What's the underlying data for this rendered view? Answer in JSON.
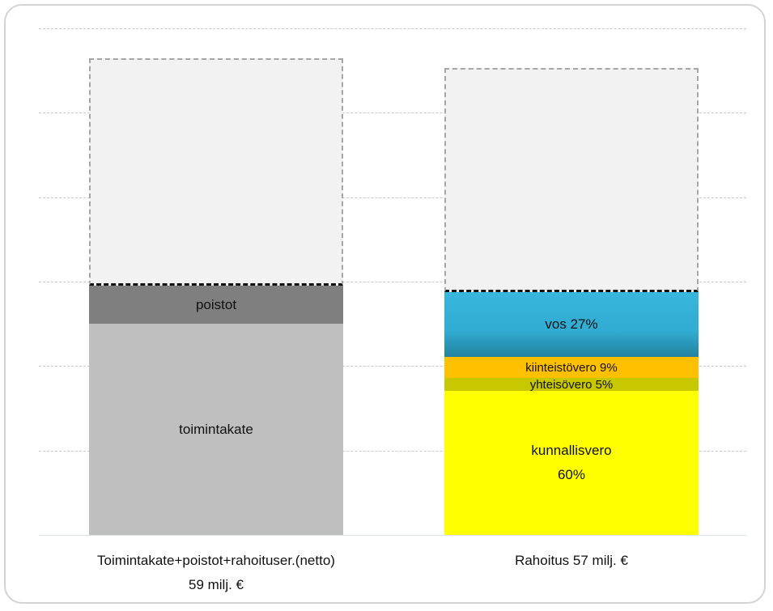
{
  "chart_data": {
    "type": "stacked_bar",
    "categories": [
      "Toimintakate+poistot+rahoituser.(netto)\n59 milj. €",
      "Rahoitus 57 milj. €"
    ],
    "series": [
      {
        "name": "toimintakate",
        "color": "#bfbfbf",
        "values": [
          50,
          null
        ]
      },
      {
        "name": "poistot",
        "color": "#7f7f7f",
        "values": [
          9,
          null
        ]
      },
      {
        "name": "kunnallisvero\n60%",
        "color": "#ffff00",
        "values": [
          null,
          34.2
        ]
      },
      {
        "name": "yhteisövero 5%",
        "color": "#c8c800",
        "values": [
          null,
          2.9
        ]
      },
      {
        "name": "kiinteistövero 9%",
        "color": "#ffc000",
        "values": [
          null,
          5.1
        ]
      },
      {
        "name": "vos 27%",
        "color": "#31acd2",
        "values": [
          null,
          15.4
        ]
      },
      {
        "color": "#f2f2f2",
        "values": [
          54,
          53
        ]
      }
    ],
    "ylim": [
      0,
      120
    ],
    "yticks": [
      0,
      20,
      40,
      60,
      80,
      100,
      120
    ],
    "grid": true
  }
}
